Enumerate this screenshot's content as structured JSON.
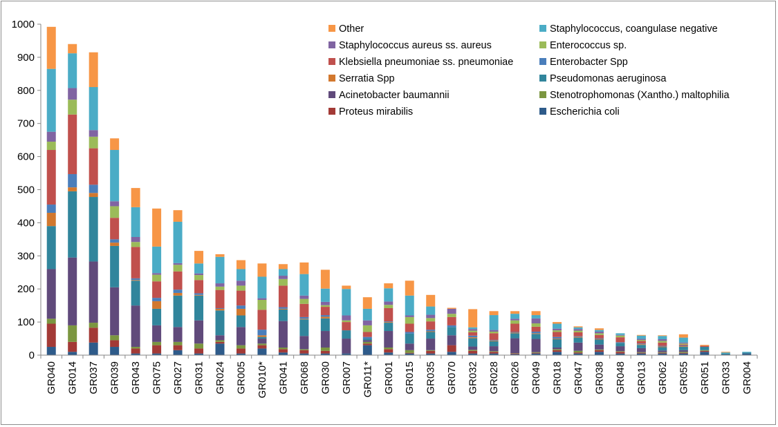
{
  "chart_data": {
    "type": "bar",
    "stacked": true,
    "title": "",
    "xlabel": "",
    "ylabel": "",
    "ylim": [
      0,
      1000
    ],
    "yticks": [
      0,
      100,
      200,
      300,
      400,
      500,
      600,
      700,
      800,
      900,
      1000
    ],
    "grid": false,
    "legend_position": "top-right",
    "categories": [
      "GR040",
      "GR014",
      "GR037",
      "GR039",
      "GR043",
      "GR075",
      "GR027",
      "GR031",
      "GR024",
      "GR005",
      "GR010*",
      "GR041",
      "GR068",
      "GR030",
      "GR007",
      "GR011*",
      "GR001",
      "GR015",
      "GR035",
      "GR070",
      "GR032",
      "GR028",
      "GR026",
      "GR049",
      "GR018",
      "GR047",
      "GR038",
      "GR048",
      "GR013",
      "GR062",
      "GR055",
      "GR051",
      "GR033",
      "GR004"
    ],
    "series": [
      {
        "name": "Escherichia coli",
        "color": "#2E5B8A",
        "values": [
          25,
          10,
          38,
          25,
          5,
          5,
          15,
          5,
          35,
          5,
          20,
          8,
          5,
          5,
          5,
          30,
          8,
          5,
          5,
          10,
          5,
          5,
          3,
          5,
          10,
          5,
          10,
          5,
          5,
          5,
          5,
          10,
          2,
          5
        ]
      },
      {
        "name": "Proteus mirabilis",
        "color": "#A33A36",
        "values": [
          70,
          30,
          45,
          20,
          15,
          25,
          15,
          15,
          5,
          15,
          10,
          10,
          10,
          8,
          0,
          5,
          10,
          2,
          8,
          20,
          8,
          5,
          2,
          2,
          5,
          3,
          5,
          5,
          2,
          2,
          2,
          3,
          0,
          0
        ]
      },
      {
        "name": "Stenotrophomonas (Xantho.) maltophilia",
        "color": "#7B9640",
        "values": [
          15,
          50,
          15,
          15,
          5,
          10,
          10,
          15,
          5,
          10,
          5,
          5,
          3,
          10,
          0,
          5,
          5,
          8,
          2,
          0,
          3,
          2,
          1,
          2,
          3,
          5,
          2,
          2,
          2,
          2,
          3,
          2,
          0,
          0
        ]
      },
      {
        "name": "Acinetobacter baumannii",
        "color": "#604A7B",
        "values": [
          150,
          205,
          185,
          145,
          125,
          50,
          45,
          70,
          15,
          55,
          15,
          80,
          40,
          50,
          45,
          5,
          50,
          20,
          35,
          30,
          10,
          15,
          45,
          40,
          5,
          25,
          15,
          15,
          12,
          5,
          5,
          0,
          0,
          0
        ]
      },
      {
        "name": "Pseudomonas aeruginosa",
        "color": "#31859C",
        "values": [
          130,
          200,
          195,
          125,
          75,
          50,
          95,
          75,
          75,
          35,
          5,
          35,
          50,
          38,
          25,
          5,
          25,
          30,
          20,
          25,
          25,
          15,
          15,
          15,
          25,
          15,
          15,
          10,
          10,
          10,
          10,
          10,
          3,
          3
        ]
      },
      {
        "name": "Serratia Spp",
        "color": "#D2782E",
        "values": [
          40,
          12,
          12,
          10,
          2,
          23,
          8,
          2,
          5,
          20,
          5,
          2,
          2,
          5,
          0,
          0,
          2,
          0,
          2,
          0,
          3,
          2,
          2,
          2,
          2,
          2,
          2,
          0,
          2,
          2,
          2,
          0,
          0,
          0
        ]
      },
      {
        "name": "Enterobacter Spp",
        "color": "#4A7EBB",
        "values": [
          25,
          40,
          25,
          10,
          5,
          10,
          10,
          5,
          2,
          10,
          17,
          5,
          5,
          5,
          0,
          5,
          2,
          5,
          5,
          5,
          5,
          2,
          2,
          5,
          5,
          2,
          2,
          2,
          2,
          2,
          2,
          0,
          0,
          0
        ]
      },
      {
        "name": "Klebsiella pneumoniae ss. pneumoniae",
        "color": "#C0504D",
        "values": [
          165,
          180,
          110,
          65,
          95,
          50,
          55,
          40,
          55,
          45,
          60,
          65,
          40,
          25,
          25,
          15,
          40,
          25,
          25,
          25,
          10,
          20,
          25,
          15,
          15,
          12,
          10,
          15,
          8,
          10,
          3,
          3,
          0,
          0
        ]
      },
      {
        "name": "Enterococcus sp.",
        "color": "#9BBB59",
        "values": [
          25,
          45,
          35,
          35,
          15,
          20,
          20,
          15,
          10,
          15,
          30,
          20,
          15,
          5,
          5,
          20,
          10,
          20,
          10,
          10,
          5,
          5,
          10,
          10,
          5,
          5,
          5,
          5,
          3,
          5,
          3,
          0,
          0,
          0
        ]
      },
      {
        "name": "Staphylococcus aureus ss. aureus",
        "color": "#8064A2",
        "values": [
          30,
          35,
          20,
          15,
          15,
          5,
          5,
          5,
          10,
          15,
          5,
          10,
          10,
          10,
          15,
          15,
          10,
          5,
          10,
          15,
          5,
          5,
          5,
          15,
          5,
          5,
          5,
          2,
          3,
          5,
          3,
          0,
          0,
          0
        ]
      },
      {
        "name": "Staphylococcus, coangulase negative",
        "color": "#4BACC6",
        "values": [
          190,
          105,
          130,
          155,
          90,
          80,
          125,
          30,
          80,
          35,
          65,
          20,
          65,
          40,
          80,
          35,
          40,
          60,
          25,
          0,
          5,
          45,
          15,
          10,
          15,
          5,
          5,
          5,
          10,
          10,
          15,
          0,
          3,
          2
        ]
      },
      {
        "name": "Other",
        "color": "#F79646",
        "values": [
          127,
          28,
          105,
          35,
          58,
          115,
          35,
          38,
          8,
          27,
          40,
          15,
          35,
          57,
          10,
          35,
          15,
          45,
          35,
          3,
          55,
          12,
          8,
          12,
          5,
          3,
          5,
          0,
          2,
          2,
          10,
          3,
          2,
          0
        ]
      }
    ],
    "legend_order": [
      "Other",
      "Staphylococcus, coangulase negative",
      "Staphylococcus aureus ss. aureus",
      "Enterococcus sp.",
      "Klebsiella pneumoniae ss. pneumoniae",
      "Enterobacter Spp",
      "Serratia Spp",
      "Pseudomonas aeruginosa",
      "Acinetobacter baumannii",
      "Stenotrophomonas (Xantho.) maltophilia",
      "Proteus mirabilis",
      "Escherichia coli"
    ]
  }
}
